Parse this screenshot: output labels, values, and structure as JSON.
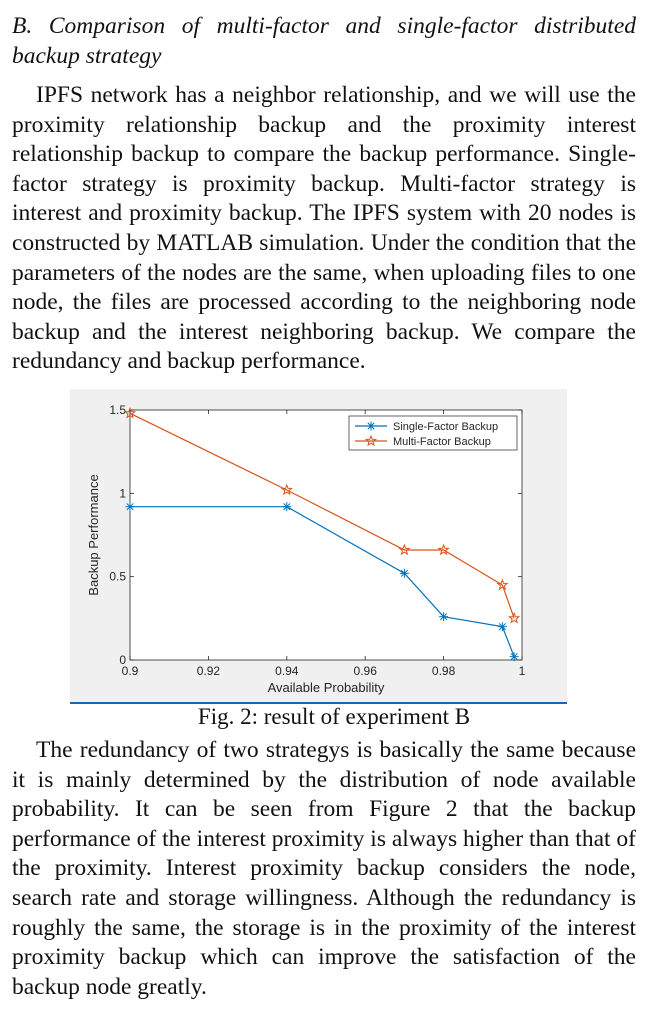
{
  "section": {
    "heading": "B. Comparison of multi-factor and single-factor distributed backup strategy"
  },
  "paragraphs": [
    "IPFS network has a neighbor relationship, and we will use the proximity relationship backup and the proximity interest relationship backup to compare the backup performance. Single-factor strategy is proximity backup. Multi-factor strategy is interest and proximity backup. The IPFS system with 20 nodes is constructed by MATLAB simulation. Under the condition that the parameters of the nodes are the same, when uploading files to one node, the files are processed according to the neighboring node backup and the interest neighboring backup. We compare the redundancy and backup performance.",
    "The redundancy of two strategys is basically the same because it is mainly determined by the distribution of node available probability. It can be seen from Figure 2 that the backup performance of the interest proximity is always higher than that of the proximity. Interest proximity backup considers the node, search rate and storage willingness. Although the redundancy is roughly the same, the storage is in the proximity of the interest proximity backup which can improve the satisfaction of the backup node greatly."
  ],
  "figure": {
    "caption": "Fig. 2: result of experiment B"
  },
  "chart_data": {
    "type": "line",
    "xlabel": "Available Probability",
    "ylabel": "Backup Performance",
    "xlim": [
      0.9,
      1
    ],
    "ylim": [
      0,
      1.5
    ],
    "xticks": [
      "0.9",
      "0.92",
      "0.94",
      "0.96",
      "0.98",
      "1"
    ],
    "yticks": [
      "0",
      "0.5",
      "1",
      "1.5"
    ],
    "grid": false,
    "legend_position": "top-right",
    "series": [
      {
        "name": "Single-Factor Backup",
        "color": "#0072bd",
        "marker": "asterisk",
        "x": [
          0.9,
          0.94,
          0.97,
          0.98,
          0.995,
          0.998
        ],
        "y": [
          0.92,
          0.92,
          0.52,
          0.26,
          0.2,
          0.02
        ]
      },
      {
        "name": "Multi-Factor Backup",
        "color": "#d95319",
        "marker": "star",
        "x": [
          0.9,
          0.94,
          0.97,
          0.98,
          0.995,
          0.998
        ],
        "y": [
          1.48,
          1.02,
          0.66,
          0.66,
          0.45,
          0.25
        ]
      }
    ]
  }
}
